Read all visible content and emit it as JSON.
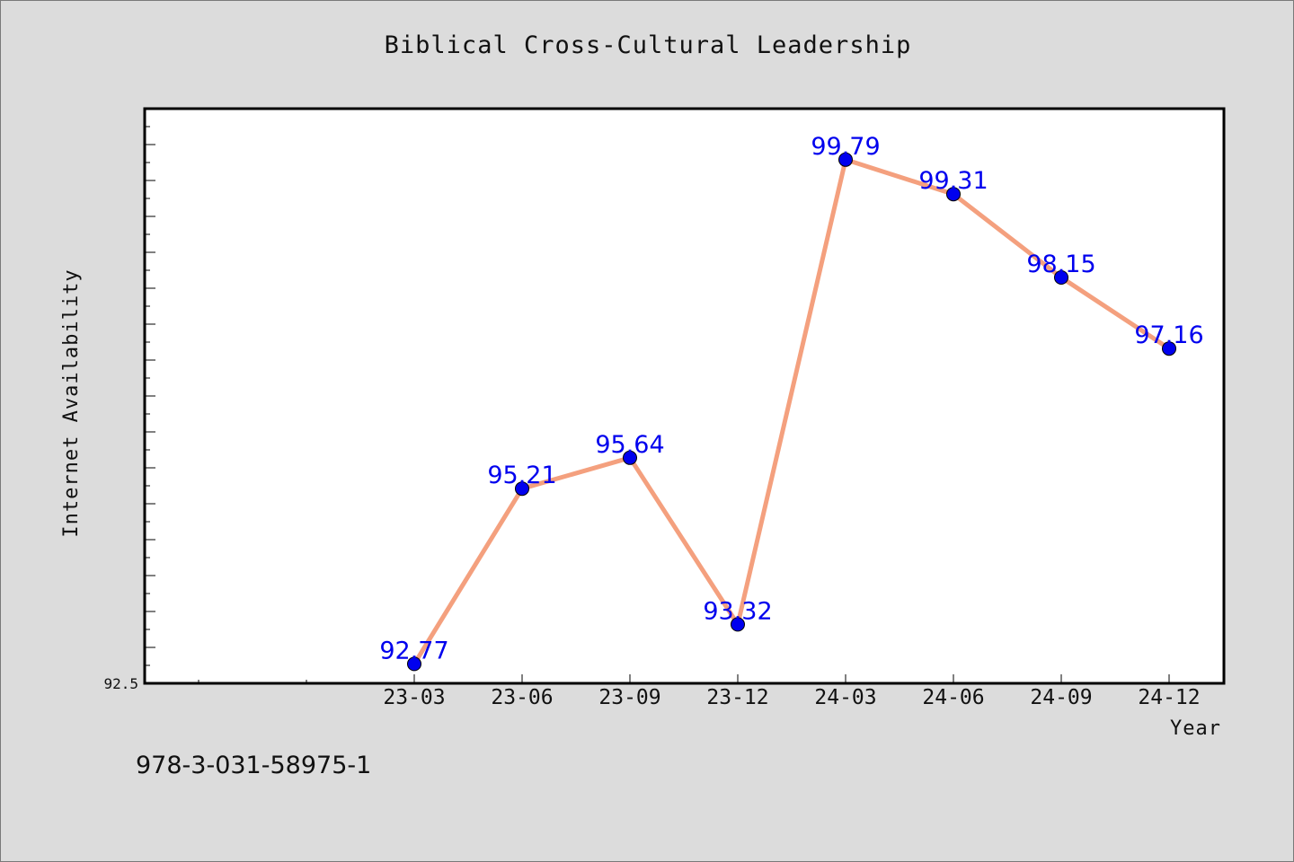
{
  "chart_data": {
    "type": "line",
    "title": "Biblical Cross-Cultural Leadership",
    "xlabel": "Year",
    "ylabel": "Internet Availability",
    "categories": [
      "23-03",
      "23-06",
      "23-09",
      "23-12",
      "24-03",
      "24-06",
      "24-09",
      "24-12"
    ],
    "values": [
      92.77,
      95.21,
      95.64,
      93.32,
      99.79,
      99.31,
      98.15,
      97.16
    ],
    "value_labels": [
      "92.77",
      "95.21",
      "95.64",
      "93.32",
      "99.79",
      "99.31",
      "98.15",
      "97.16"
    ],
    "ylim": [
      92.5,
      100.5
    ],
    "ytick_labels": [
      "92.5"
    ],
    "grid": false,
    "legend": "none",
    "colors": {
      "line": "#f4a07e",
      "marker": "#0000ee",
      "label": "#0000ee",
      "plot_bg": "#ffffff",
      "page_bg": "#dcdcdc"
    }
  },
  "footer": {
    "isbn": "978-3-031-58975-1"
  }
}
